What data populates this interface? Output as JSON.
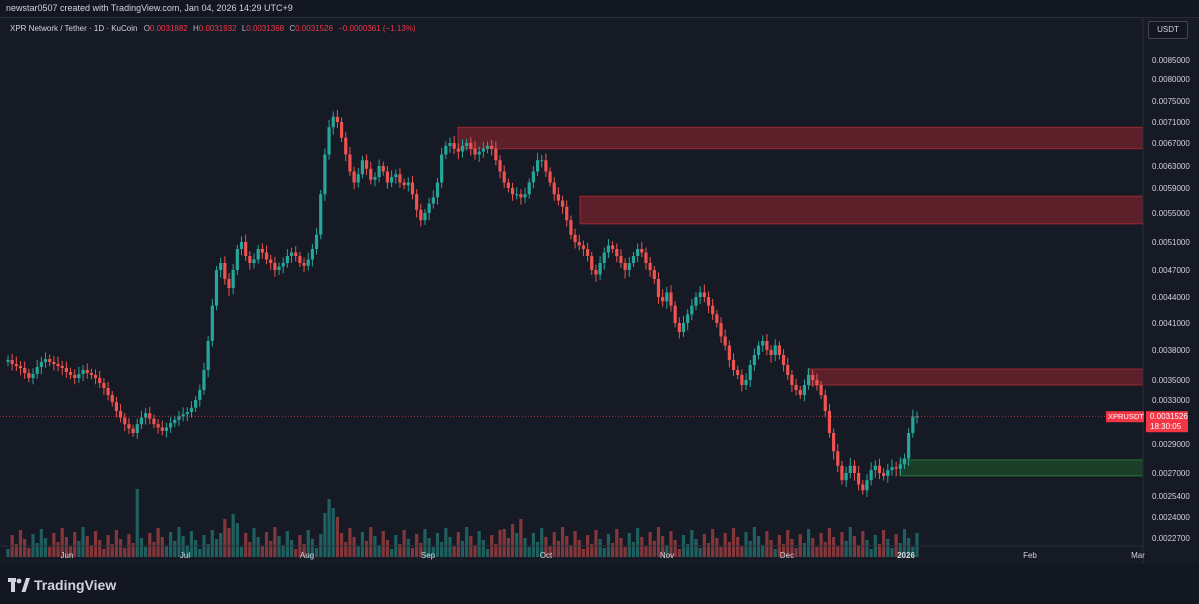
{
  "header": {
    "credit": "newstar0507 created with TradingView.com, Jan 04, 2026 14:29 UTC+9"
  },
  "legend": {
    "symbol": "XPR Network / Tether · 1D · KuCoin",
    "o_label": "O",
    "o_value": "0.0031882",
    "h_label": "H",
    "h_value": "0.0031932",
    "l_label": "L",
    "l_value": "0.0031368",
    "c_label": "C",
    "c_value": "0.0031526",
    "change": "−0.0000361 (−1.13%)"
  },
  "currency_button": "USDT",
  "price_tag": {
    "symbol": "XPRUSDT",
    "price": "0.0031526",
    "countdown": "18:30:05"
  },
  "footer": {
    "brand": "TradingView"
  },
  "colors": {
    "up": "#26a69a",
    "down": "#ef5350",
    "zone_red": "#b22833",
    "zone_green": "#1e6b2a",
    "background": "#161a25",
    "axis_text": "#d1d4dc",
    "tag": "#f23645"
  },
  "chart_data": {
    "type": "candlestick",
    "pair": "XPRUSDT",
    "interval": "1D",
    "exchange": "KuCoin",
    "y_ticks": [
      "0.0085000",
      "0.0080000",
      "0.0075000",
      "0.0071000",
      "0.0067000",
      "0.0063000",
      "0.0059000",
      "0.0055000",
      "0.0051000",
      "0.0047000",
      "0.0044000",
      "0.0041000",
      "0.0038000",
      "0.0035000",
      "0.0033000",
      "0.0029000",
      "0.0027000",
      "0.0025400",
      "0.0024000",
      "0.0022700"
    ],
    "x_ticks": [
      "Jun",
      "Jul",
      "Aug",
      "Sep",
      "Oct",
      "Nov",
      "Dec",
      "2026",
      "Feb",
      "Mar"
    ],
    "grid": false,
    "current_price": 0.0031526,
    "zones": [
      {
        "kind": "supply",
        "from": "Sep",
        "to": "right-edge",
        "top": 0.007,
        "bottom": 0.0066
      },
      {
        "kind": "supply",
        "from": "Oct",
        "to": "right-edge",
        "top": 0.00577,
        "bottom": 0.00535
      },
      {
        "kind": "supply",
        "from": "Dec",
        "to": "right-edge",
        "top": 0.00361,
        "bottom": 0.00345
      },
      {
        "kind": "demand",
        "from": "late-Dec",
        "to": "right-edge",
        "top": 0.00279,
        "bottom": 0.00268
      }
    ],
    "closes": [
      0.0037,
      0.00366,
      0.00364,
      0.00362,
      0.00357,
      0.00352,
      0.00356,
      0.00363,
      0.00368,
      0.00371,
      0.00368,
      0.00366,
      0.00364,
      0.00362,
      0.00358,
      0.00355,
      0.00352,
      0.00356,
      0.0036,
      0.00357,
      0.00355,
      0.00352,
      0.00347,
      0.00342,
      0.00335,
      0.00328,
      0.0032,
      0.00314,
      0.00308,
      0.00304,
      0.003,
      0.00308,
      0.00314,
      0.00318,
      0.00313,
      0.00308,
      0.00305,
      0.00302,
      0.00305,
      0.00309,
      0.00312,
      0.00315,
      0.00317,
      0.00319,
      0.00323,
      0.0033,
      0.0034,
      0.0036,
      0.0039,
      0.0043,
      0.0047,
      0.0048,
      0.0046,
      0.0045,
      0.0047,
      0.005,
      0.0051,
      0.0049,
      0.0048,
      0.00485,
      0.005,
      0.00495,
      0.00485,
      0.0048,
      0.0047,
      0.00475,
      0.0048,
      0.0049,
      0.00495,
      0.0049,
      0.0048,
      0.00476,
      0.00485,
      0.005,
      0.0052,
      0.0058,
      0.0065,
      0.007,
      0.0072,
      0.0071,
      0.0068,
      0.0065,
      0.0062,
      0.006,
      0.00615,
      0.0064,
      0.00625,
      0.00605,
      0.0061,
      0.0063,
      0.0062,
      0.006,
      0.0061,
      0.00615,
      0.006,
      0.00595,
      0.006,
      0.0058,
      0.00555,
      0.0054,
      0.0055,
      0.00565,
      0.00575,
      0.006,
      0.0065,
      0.00665,
      0.0067,
      0.0066,
      0.00655,
      0.00665,
      0.0067,
      0.0066,
      0.0065,
      0.00655,
      0.0066,
      0.00665,
      0.0066,
      0.0064,
      0.0062,
      0.006,
      0.0059,
      0.0058,
      0.0058,
      0.00575,
      0.0058,
      0.006,
      0.0062,
      0.0064,
      0.0064,
      0.0062,
      0.006,
      0.0058,
      0.0057,
      0.0056,
      0.0054,
      0.0052,
      0.0051,
      0.00505,
      0.005,
      0.0049,
      0.0047,
      0.00465,
      0.0048,
      0.00495,
      0.00505,
      0.005,
      0.0049,
      0.0048,
      0.0047,
      0.0048,
      0.0049,
      0.005,
      0.00495,
      0.0048,
      0.0047,
      0.0046,
      0.0044,
      0.00435,
      0.00445,
      0.0043,
      0.0041,
      0.004,
      0.0041,
      0.0042,
      0.0043,
      0.0044,
      0.00445,
      0.0044,
      0.0043,
      0.0042,
      0.0041,
      0.00395,
      0.00385,
      0.0037,
      0.0036,
      0.00355,
      0.00345,
      0.0035,
      0.00365,
      0.00375,
      0.00385,
      0.0039,
      0.0038,
      0.00375,
      0.00385,
      0.00375,
      0.00365,
      0.00355,
      0.00345,
      0.0034,
      0.00335,
      0.00345,
      0.00355,
      0.0035,
      0.00345,
      0.00335,
      0.0032,
      0.003,
      0.00285,
      0.00275,
      0.00265,
      0.0027,
      0.00275,
      0.0027,
      0.00262,
      0.00258,
      0.00265,
      0.00272,
      0.00275,
      0.0027,
      0.00268,
      0.00272,
      0.00274,
      0.00273,
      0.00276,
      0.0028,
      0.003,
      0.00315,
      0.00315
    ]
  }
}
